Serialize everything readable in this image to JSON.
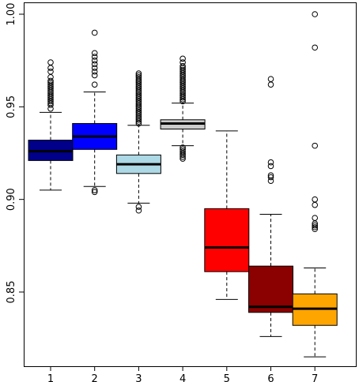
{
  "chart_data": {
    "type": "box",
    "title": "",
    "xlabel": "",
    "ylabel": "",
    "ylim": [
      0.811,
      1.0
    ],
    "y_ticks": [
      0.85,
      0.9,
      0.95,
      1.0
    ],
    "y_tick_labels": [
      "0.85",
      "0.90",
      "0.95",
      "1.00"
    ],
    "categories": [
      "1",
      "2",
      "3",
      "4",
      "5",
      "6",
      "7"
    ],
    "boxes": [
      {
        "category": "1",
        "color": "#00008b",
        "whisker_low": 0.905,
        "q1": 0.921,
        "median": 0.926,
        "q3": 0.932,
        "whisker_high": 0.947,
        "outliers": [
          0.949,
          0.951,
          0.952,
          0.953,
          0.954,
          0.955,
          0.956,
          0.957,
          0.958,
          0.959,
          0.96,
          0.961,
          0.962,
          0.963,
          0.964,
          0.966,
          0.969,
          0.971,
          0.974
        ]
      },
      {
        "category": "2",
        "color": "#0000ff",
        "whisker_low": 0.907,
        "q1": 0.927,
        "median": 0.934,
        "q3": 0.941,
        "whisker_high": 0.958,
        "outliers": [
          0.904,
          0.905,
          0.962,
          0.967,
          0.969,
          0.971,
          0.973,
          0.975,
          0.977,
          0.979,
          0.99
        ]
      },
      {
        "category": "3",
        "color": "#add8e6",
        "whisker_low": 0.898,
        "q1": 0.914,
        "median": 0.919,
        "q3": 0.924,
        "whisker_high": 0.94,
        "outliers": [
          0.894,
          0.896,
          0.941,
          0.942,
          0.943,
          0.944,
          0.945,
          0.946,
          0.947,
          0.948,
          0.949,
          0.95,
          0.951,
          0.952,
          0.953,
          0.954,
          0.955,
          0.956,
          0.957,
          0.958,
          0.959,
          0.96,
          0.961,
          0.962,
          0.963,
          0.964,
          0.965,
          0.966,
          0.967,
          0.968
        ]
      },
      {
        "category": "4",
        "color": "#cccccc",
        "whisker_low": 0.929,
        "q1": 0.938,
        "median": 0.941,
        "q3": 0.943,
        "whisker_high": 0.952,
        "outliers": [
          0.922,
          0.923,
          0.924,
          0.925,
          0.926,
          0.927,
          0.928,
          0.953,
          0.954,
          0.955,
          0.956,
          0.957,
          0.958,
          0.959,
          0.96,
          0.961,
          0.962,
          0.963,
          0.964,
          0.965,
          0.966,
          0.967,
          0.968,
          0.969,
          0.97,
          0.971,
          0.972,
          0.974,
          0.976
        ]
      },
      {
        "category": "5",
        "color": "#ff0000",
        "whisker_low": 0.846,
        "q1": 0.861,
        "median": 0.874,
        "q3": 0.895,
        "whisker_high": 0.937,
        "outliers": []
      },
      {
        "category": "6",
        "color": "#8b0000",
        "whisker_low": 0.826,
        "q1": 0.839,
        "median": 0.842,
        "q3": 0.864,
        "whisker_high": 0.892,
        "outliers": [
          0.91,
          0.912,
          0.913,
          0.918,
          0.92,
          0.962,
          0.965
        ]
      },
      {
        "category": "7",
        "color": "#ffa500",
        "whisker_low": 0.815,
        "q1": 0.832,
        "median": 0.841,
        "q3": 0.849,
        "whisker_high": 0.863,
        "outliers": [
          0.884,
          0.885,
          0.886,
          0.887,
          0.89,
          0.897,
          0.9,
          0.929,
          0.982,
          1.0
        ]
      }
    ],
    "grid": false,
    "legend": "none"
  }
}
